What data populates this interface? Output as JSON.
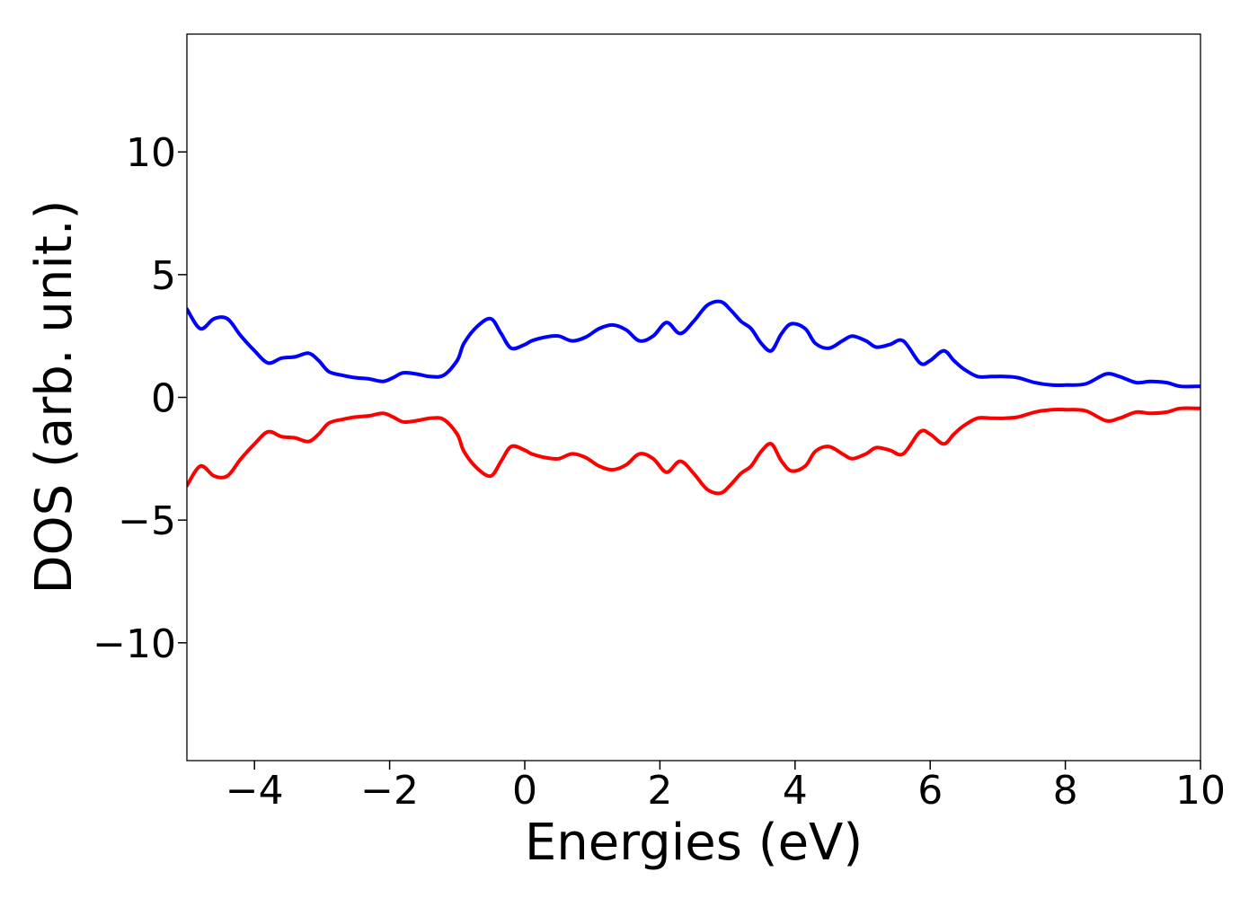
{
  "chart_data": {
    "type": "line",
    "xlabel": "Energies (eV)",
    "ylabel": "DOS (arb. unit.)",
    "xlim": [
      -5,
      10
    ],
    "ylim": [
      -14.8,
      14.8
    ],
    "xticks": [
      -4,
      -2,
      0,
      2,
      4,
      6,
      8,
      10
    ],
    "yticks": [
      -10,
      -5,
      0,
      5,
      10
    ],
    "xtick_labels": [
      "−4",
      "−2",
      "0",
      "2",
      "4",
      "6",
      "8",
      "10"
    ],
    "ytick_labels": [
      "−10",
      "−5",
      "0",
      "5",
      "10"
    ],
    "grid": false,
    "legend": "none",
    "series": [
      {
        "color": "#0000ff",
        "x": [
          -5.0,
          -4.8,
          -4.6,
          -4.4,
          -4.2,
          -4.0,
          -3.8,
          -3.6,
          -3.4,
          -3.2,
          -3.05,
          -2.9,
          -2.7,
          -2.5,
          -2.3,
          -2.1,
          -1.95,
          -1.8,
          -1.6,
          -1.4,
          -1.2,
          -1.0,
          -0.9,
          -0.7,
          -0.5,
          -0.35,
          -0.2,
          0.0,
          0.1,
          0.3,
          0.5,
          0.7,
          0.9,
          1.1,
          1.3,
          1.5,
          1.7,
          1.9,
          2.1,
          2.3,
          2.5,
          2.7,
          2.9,
          3.05,
          3.2,
          3.35,
          3.5,
          3.65,
          3.8,
          3.95,
          4.15,
          4.3,
          4.5,
          4.7,
          4.85,
          5.05,
          5.2,
          5.4,
          5.6,
          5.85,
          6.0,
          6.2,
          6.35,
          6.5,
          6.7,
          6.9,
          7.1,
          7.3,
          7.55,
          7.8,
          8.0,
          8.3,
          8.6,
          8.8,
          9.05,
          9.25,
          9.5,
          9.7,
          10.0
        ],
        "values": [
          3.6,
          2.8,
          3.2,
          3.2,
          2.5,
          1.9,
          1.4,
          1.6,
          1.65,
          1.8,
          1.5,
          1.05,
          0.9,
          0.8,
          0.75,
          0.65,
          0.8,
          1.0,
          0.95,
          0.85,
          0.9,
          1.5,
          2.2,
          2.9,
          3.2,
          2.6,
          2.0,
          2.15,
          2.3,
          2.45,
          2.5,
          2.3,
          2.45,
          2.8,
          2.95,
          2.75,
          2.3,
          2.5,
          3.05,
          2.6,
          3.1,
          3.75,
          3.9,
          3.55,
          3.1,
          2.8,
          2.2,
          1.9,
          2.6,
          3.0,
          2.8,
          2.2,
          2.0,
          2.3,
          2.5,
          2.3,
          2.05,
          2.15,
          2.3,
          1.4,
          1.5,
          1.9,
          1.5,
          1.15,
          0.85,
          0.85,
          0.85,
          0.8,
          0.6,
          0.5,
          0.5,
          0.55,
          0.95,
          0.85,
          0.6,
          0.65,
          0.6,
          0.45,
          0.45
        ]
      },
      {
        "color": "#ff0000",
        "x": [
          -5.0,
          -4.8,
          -4.6,
          -4.4,
          -4.2,
          -4.0,
          -3.8,
          -3.6,
          -3.4,
          -3.2,
          -3.05,
          -2.9,
          -2.7,
          -2.5,
          -2.3,
          -2.1,
          -1.95,
          -1.8,
          -1.6,
          -1.4,
          -1.2,
          -1.0,
          -0.9,
          -0.7,
          -0.5,
          -0.35,
          -0.2,
          0.0,
          0.1,
          0.3,
          0.5,
          0.7,
          0.9,
          1.1,
          1.3,
          1.5,
          1.7,
          1.9,
          2.1,
          2.3,
          2.5,
          2.7,
          2.9,
          3.05,
          3.2,
          3.35,
          3.5,
          3.65,
          3.8,
          3.95,
          4.15,
          4.3,
          4.5,
          4.7,
          4.85,
          5.05,
          5.2,
          5.4,
          5.6,
          5.85,
          6.0,
          6.2,
          6.35,
          6.5,
          6.7,
          6.9,
          7.1,
          7.3,
          7.55,
          7.8,
          8.0,
          8.3,
          8.6,
          8.8,
          9.05,
          9.25,
          9.5,
          9.7,
          10.0
        ],
        "values": [
          -3.6,
          -2.8,
          -3.2,
          -3.2,
          -2.5,
          -1.9,
          -1.4,
          -1.6,
          -1.65,
          -1.8,
          -1.5,
          -1.05,
          -0.9,
          -0.8,
          -0.75,
          -0.65,
          -0.8,
          -1.0,
          -0.95,
          -0.85,
          -0.9,
          -1.5,
          -2.2,
          -2.9,
          -3.2,
          -2.6,
          -2.0,
          -2.15,
          -2.3,
          -2.45,
          -2.5,
          -2.3,
          -2.45,
          -2.8,
          -2.95,
          -2.75,
          -2.3,
          -2.5,
          -3.05,
          -2.6,
          -3.1,
          -3.75,
          -3.9,
          -3.55,
          -3.1,
          -2.8,
          -2.2,
          -1.9,
          -2.6,
          -3.0,
          -2.8,
          -2.2,
          -2.0,
          -2.3,
          -2.5,
          -2.3,
          -2.05,
          -2.15,
          -2.3,
          -1.4,
          -1.5,
          -1.9,
          -1.5,
          -1.15,
          -0.85,
          -0.85,
          -0.85,
          -0.8,
          -0.6,
          -0.5,
          -0.5,
          -0.55,
          -0.95,
          -0.85,
          -0.6,
          -0.65,
          -0.6,
          -0.45,
          -0.45
        ]
      }
    ]
  }
}
